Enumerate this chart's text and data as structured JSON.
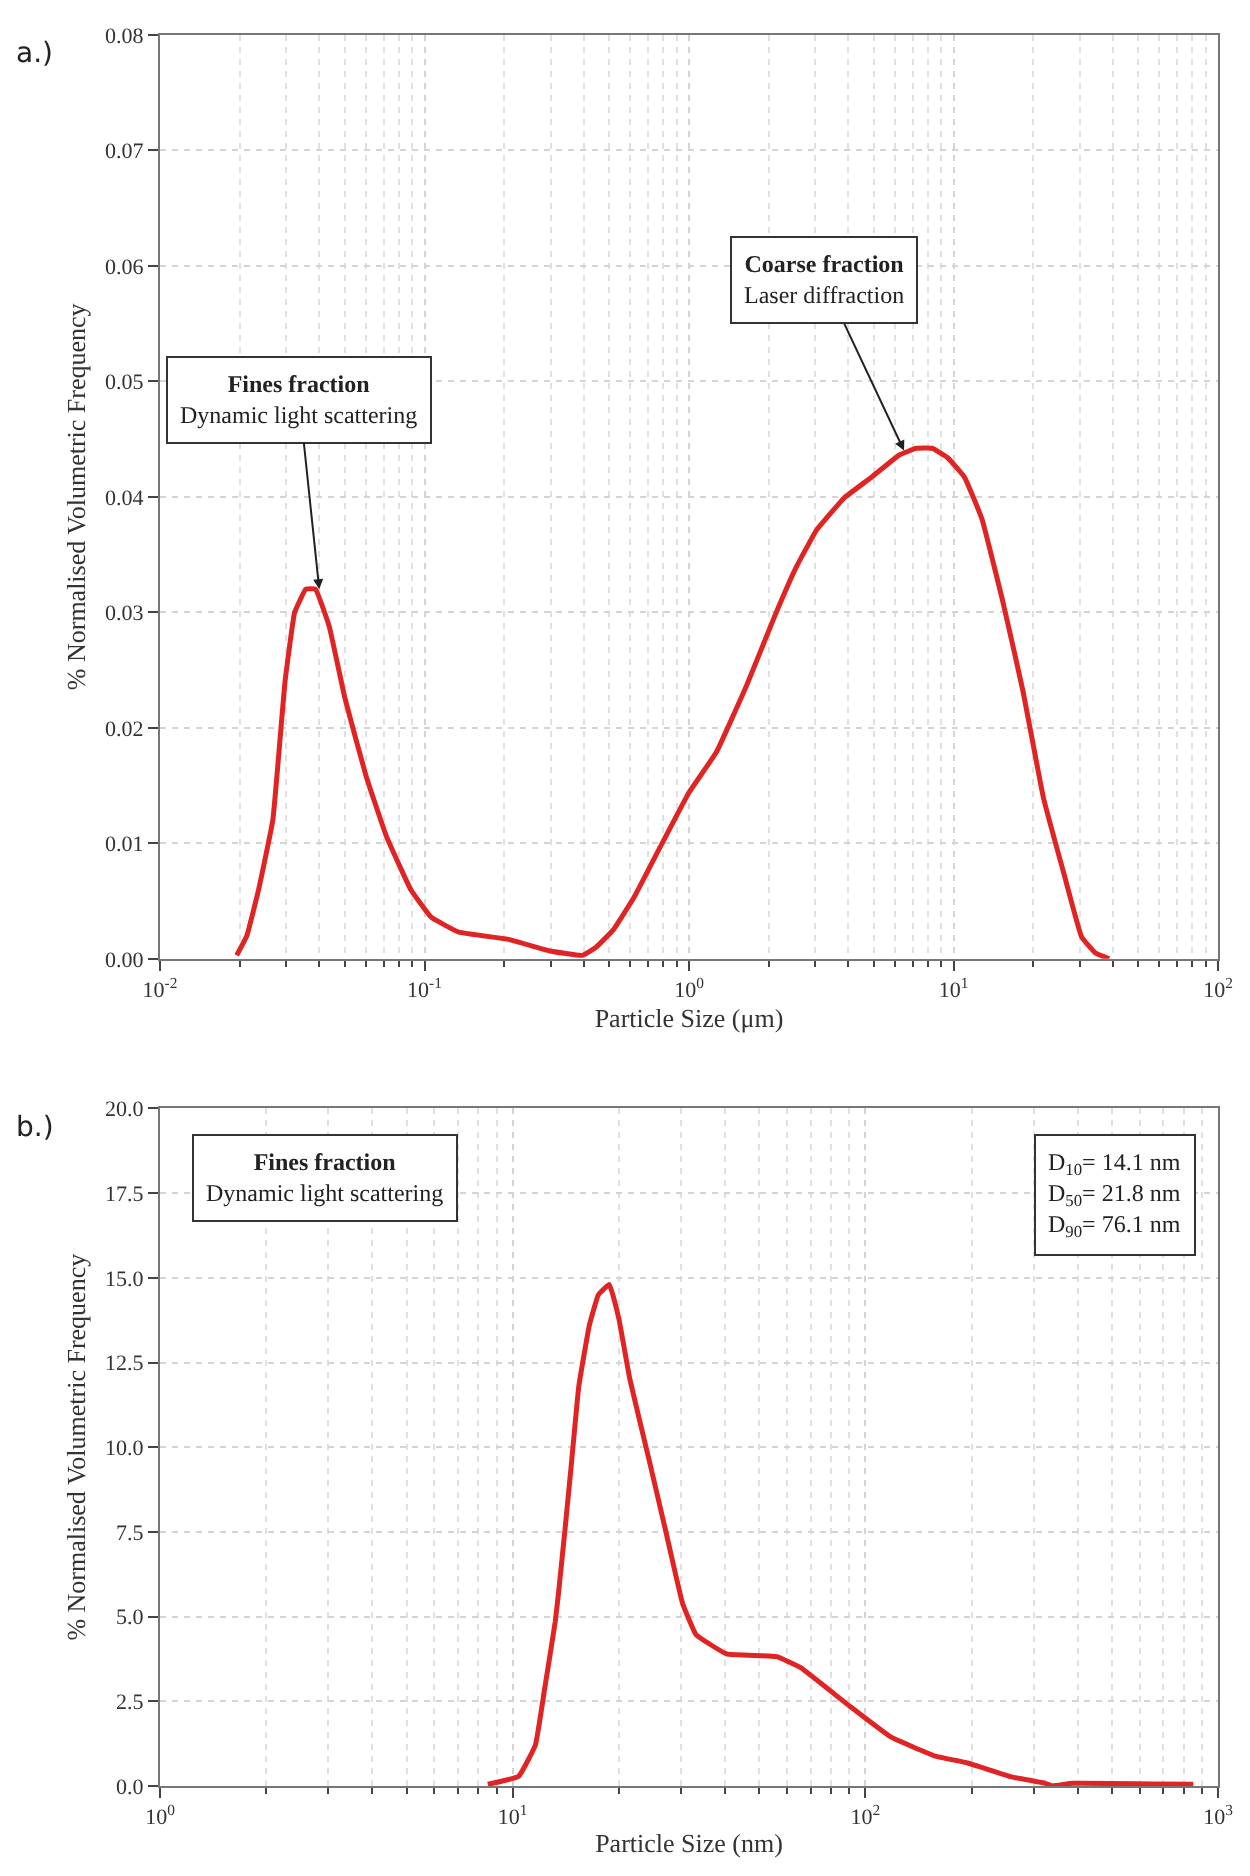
{
  "chart_data": [
    {
      "type": "line",
      "xlabel": "Particle Size (μm)",
      "ylabel": "% Normalised Volumetric Frequency",
      "log": "x",
      "grid": true,
      "xlim": [
        0.01,
        100
      ],
      "xticks": [
        {
          "value": 0.01,
          "label": "10$^{-2}$"
        },
        {
          "value": 0.1,
          "label": "10$^{-1}$"
        },
        {
          "value": 1,
          "label": "10$^{0}$"
        },
        {
          "value": 10,
          "label": "10$^{1}$"
        },
        {
          "value": 100,
          "label": "10$^{2}$"
        }
      ],
      "ylim": [
        0,
        0.08
      ],
      "yticks": [
        {
          "value": 0,
          "label": "0.00"
        },
        0.01,
        0.02,
        0.03,
        0.04,
        0.05,
        0.06,
        0.07,
        {
          "value": 0.08,
          "label": "0.08"
        }
      ],
      "series": [
        {
          "color": "#e02424",
          "x": [
            0.0195,
            0.0213,
            0.0236,
            0.0267,
            0.0297,
            0.0323,
            0.0356,
            0.0387,
            0.0436,
            0.0501,
            0.06,
            0.0718,
            0.0887,
            0.106,
            0.135,
            0.206,
            0.295,
            0.395,
            0.445,
            0.517,
            0.619,
            0.763,
            1.0,
            1.27,
            1.66,
            2.12,
            2.53,
            3.03,
            3.86,
            4.9,
            6.22,
            7.23,
            8.3,
            9.48,
            11.0,
            12.8,
            15.3,
            18.3,
            21.9,
            26.2,
            30.5,
            34.4,
            38.8
          ],
          "values": [
            0.0003,
            0.002,
            0.006,
            0.012,
            0.024,
            0.03,
            0.032,
            0.032,
            0.0288,
            0.0225,
            0.0159,
            0.0106,
            0.006,
            0.0036,
            0.0023,
            0.0017,
            0.0007,
            0.0003,
            0.001,
            0.0025,
            0.0053,
            0.0093,
            0.0144,
            0.0179,
            0.0238,
            0.0298,
            0.0338,
            0.0371,
            0.0399,
            0.0417,
            0.0436,
            0.0442,
            0.0442,
            0.0434,
            0.0417,
            0.0381,
            0.0311,
            0.0232,
            0.0139,
            0.0073,
            0.0019,
            0.0005,
            0.0
          ]
        }
      ],
      "annotations": [
        "a.)",
        {
          "text": "Fines fraction\nDynamic light scattering",
          "x": 0.04,
          "y": 0.032
        },
        {
          "text": "Coarse fraction\nLaser diffraction",
          "x": 6.5,
          "y": 0.044
        }
      ]
    },
    {
      "type": "line",
      "xlabel": "Particle Size (nm)",
      "ylabel": "% Normalised Volumetric Frequency",
      "log": "x",
      "grid": true,
      "xlim": [
        1,
        1000
      ],
      "xticks": [
        {
          "value": 1,
          "label": "10$^{0}$"
        },
        {
          "value": 10,
          "label": "10$^{1}$"
        },
        {
          "value": 100,
          "label": "10$^{2}$"
        },
        {
          "value": 1000,
          "label": "10$^{3}$"
        }
      ],
      "ylim": [
        0,
        20
      ],
      "yticks": [
        {
          "value": 0,
          "label": "0.0"
        },
        2.5,
        {
          "value": 5,
          "label": "5.0"
        },
        7.5,
        {
          "value": 10,
          "label": "10.0"
        },
        12.5,
        {
          "value": 15,
          "label": "15.0"
        },
        17.5,
        {
          "value": 20,
          "label": "20.0"
        }
      ],
      "series": [
        {
          "color": "#e02424",
          "x": [
            8.5,
            10.4,
            11.6,
            12.3,
            13.2,
            13.5,
            14.1,
            14.7,
            15.4,
            16.5,
            17.5,
            18.8,
            20.0,
            21.5,
            24.4,
            27.2,
            30.3,
            33.1,
            40.4,
            56.1,
            65.4,
            90.7,
            118,
            157,
            195,
            260,
            324,
            339,
            386,
            851
          ],
          "values": [
            0.05,
            0.29,
            1.21,
            2.82,
            4.84,
            5.73,
            7.66,
            9.6,
            11.8,
            13.6,
            14.5,
            14.8,
            13.8,
            12.0,
            9.6,
            7.5,
            5.4,
            4.47,
            3.9,
            3.82,
            3.5,
            2.34,
            1.45,
            0.89,
            0.68,
            0.27,
            0.08,
            0.0,
            0.08,
            0.05
          ]
        }
      ],
      "annotations": [
        "b.)",
        "Fines fraction\nDynamic light scattering",
        "D$_{10}$= 14.1 nm\nD$_{50}$= 21.8 nm\nD$_{90}$= 76.1 nm"
      ]
    }
  ]
}
